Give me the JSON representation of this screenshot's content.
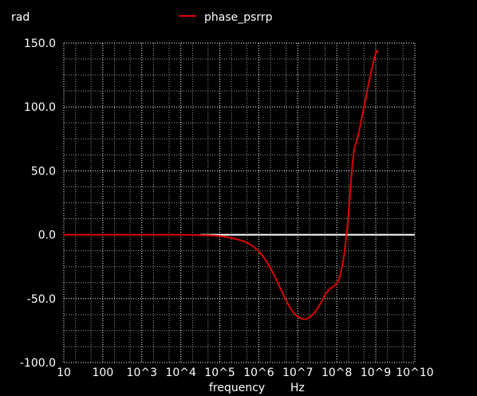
{
  "chart_data": {
    "type": "line",
    "ylabel": "rad",
    "xlabel": "frequency",
    "xunit": "Hz",
    "x_scale": "log10",
    "xlim_log10": [
      1,
      10
    ],
    "ylim": [
      -100,
      150
    ],
    "x_tick_labels": [
      "10",
      "100",
      "10^3",
      "10^4",
      "10^5",
      "10^6",
      "10^7",
      "10^8",
      "10^9",
      "10^10"
    ],
    "y_tick_values": [
      150,
      100,
      50,
      0,
      -50,
      -100
    ],
    "y_tick_labels": [
      "150.0",
      "100.0",
      "50.0",
      "0.0",
      "-50.0",
      "-100.0"
    ],
    "grid": true,
    "legend_position": "top-center",
    "reference_line": {
      "y": 0,
      "color": "#ffffff",
      "x_from_log10": 4.5,
      "x_to_log10": 10
    },
    "series": [
      {
        "name": "phase_psrrp",
        "color": "#dd0000",
        "x_log10": [
          1,
          2,
          3,
          4,
          4.5,
          5,
          5.3,
          5.6,
          5.8,
          6,
          6.2,
          6.4,
          6.6,
          6.8,
          7,
          7.2,
          7.4,
          7.6,
          7.7,
          7.8,
          8,
          8.1,
          8.2,
          8.3,
          8.38,
          8.45,
          8.55,
          8.7,
          8.85,
          9,
          9.05
        ],
        "y": [
          0,
          0,
          0,
          0,
          -0.3,
          -1,
          -2.5,
          -5,
          -8,
          -13,
          -21,
          -32,
          -45,
          -57,
          -64,
          -66,
          -62,
          -53,
          -47,
          -43,
          -38,
          -30,
          -13,
          16,
          48,
          67,
          78,
          100,
          123,
          142,
          143
        ]
      }
    ]
  }
}
